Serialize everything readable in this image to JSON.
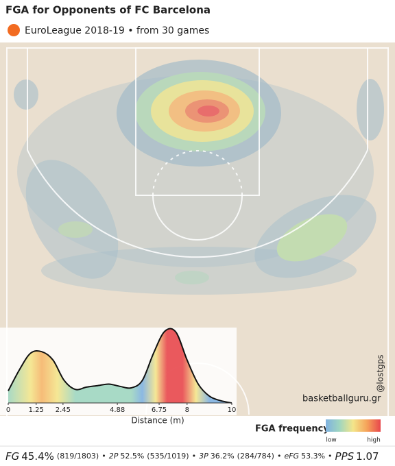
{
  "header": {
    "title": "FGA for Opponents of FC Barcelona",
    "subtitle": "EuroLeague 2018-19 • from  30 games"
  },
  "chart_data": {
    "type": "area",
    "xlabel": "Distance (m)",
    "x": [
      0,
      0.5,
      1,
      1.5,
      2,
      2.5,
      3,
      3.5,
      4,
      4.5,
      5,
      5.5,
      6,
      6.5,
      7,
      7.5,
      8,
      8.5,
      9,
      9.5,
      10
    ],
    "values": [
      0.16,
      0.44,
      0.66,
      0.68,
      0.57,
      0.3,
      0.18,
      0.21,
      0.23,
      0.25,
      0.22,
      0.2,
      0.3,
      0.66,
      0.95,
      0.94,
      0.57,
      0.25,
      0.09,
      0.03,
      0
    ],
    "xlim": [
      0,
      10
    ],
    "xticks": [
      0,
      1.25,
      2.45,
      4.88,
      6.75,
      8,
      10
    ],
    "ylim": [
      0,
      1
    ],
    "color": "#111111"
  },
  "credits": {
    "handle": "@lostgps",
    "site": "basketballguru.gr"
  },
  "legend": {
    "title": "FGA frequency",
    "low": "low",
    "high": "high",
    "colors": [
      "#7fb1e0",
      "#9fd6c0",
      "#f4e58a",
      "#f5a35a",
      "#e8474c"
    ]
  },
  "footer": {
    "stats": [
      {
        "name": "FG",
        "value": "45.4%",
        "detail": "(819/1803)"
      },
      {
        "name": "2P",
        "value": "52.5%",
        "detail": "(535/1019)"
      },
      {
        "name": "3P",
        "value": "36.2%",
        "detail": "(284/784)"
      },
      {
        "name": "eFG",
        "value": "53.3%"
      },
      {
        "name": "PPS",
        "value": "1.07"
      }
    ]
  }
}
